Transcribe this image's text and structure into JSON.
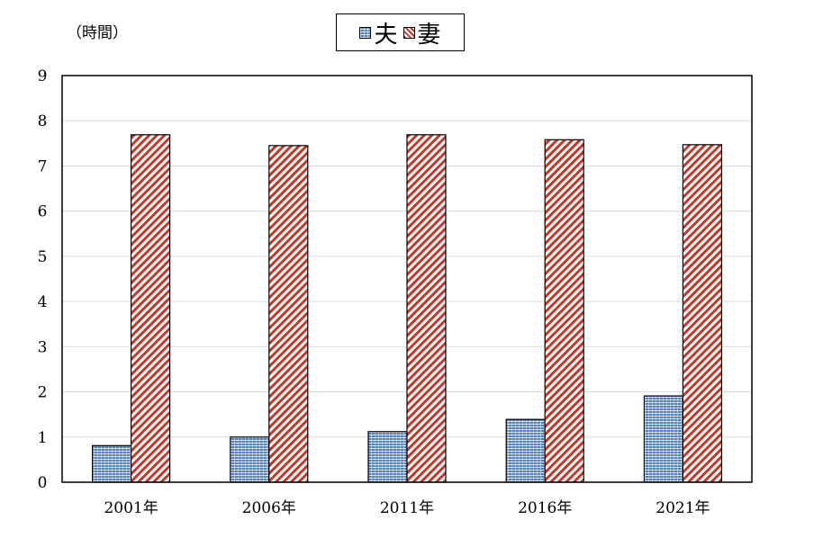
{
  "chart_data": {
    "type": "bar",
    "unit_label": "（時間）",
    "categories": [
      "2001年",
      "2006年",
      "2011年",
      "2016年",
      "2021年"
    ],
    "series": [
      {
        "name": "夫",
        "values": [
          0.81,
          1.0,
          1.12,
          1.39,
          1.91
        ],
        "color": "#4f81c7"
      },
      {
        "name": "妻",
        "values": [
          7.69,
          7.45,
          7.69,
          7.58,
          7.47
        ],
        "color": "#c0392b"
      }
    ],
    "ylim": [
      0,
      9
    ],
    "yticks": [
      "0",
      "1",
      "2",
      "3",
      "4",
      "5",
      "6",
      "7",
      "8",
      "9"
    ],
    "grid": true,
    "legend": "top-center"
  }
}
